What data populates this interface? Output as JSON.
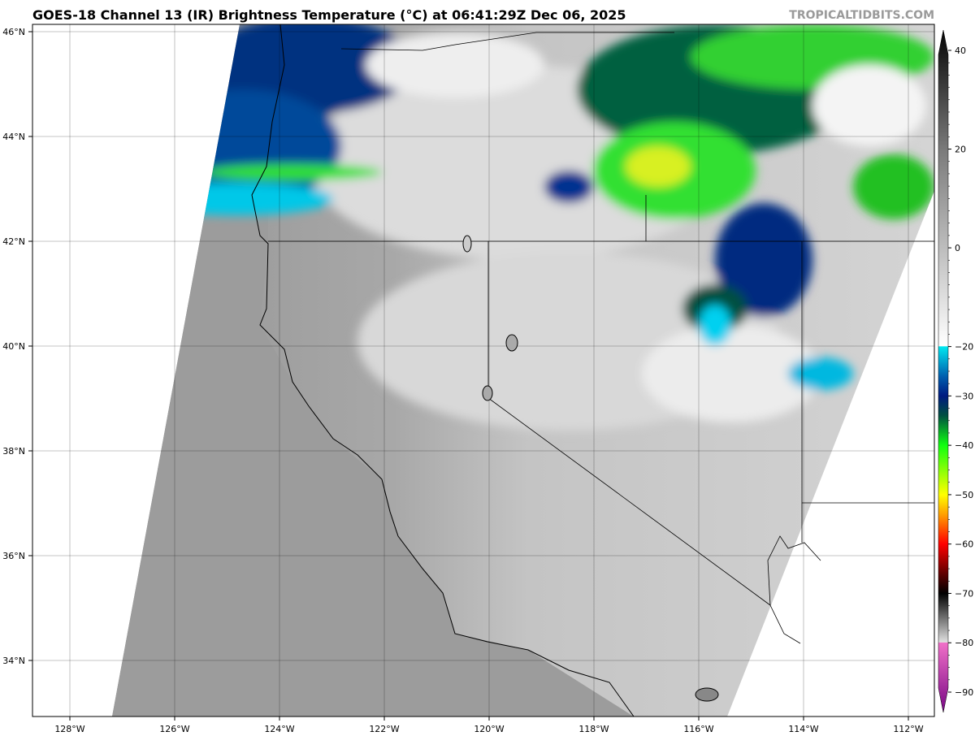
{
  "title": "GOES-18 Channel 13 (IR) Brightness Temperature (°C) at 06:41:29Z Dec 06, 2025",
  "watermark": "TROPICALTIDBITS.COM",
  "map": {
    "lat_ticks": [
      "46°N",
      "44°N",
      "42°N",
      "40°N",
      "38°N",
      "36°N",
      "34°N"
    ],
    "lat_values": [
      46,
      44,
      42,
      40,
      38,
      36,
      34
    ],
    "lon_ticks": [
      "128°W",
      "126°W",
      "124°W",
      "122°W",
      "120°W",
      "118°W",
      "116°W",
      "114°W",
      "112°W"
    ],
    "lon_values": [
      -128,
      -126,
      -124,
      -122,
      -120,
      -118,
      -116,
      -114,
      -112
    ],
    "extent": {
      "lon": [
        -128.7,
        -111.5
      ],
      "lat": [
        32.9,
        46.15
      ]
    }
  },
  "colorbar": {
    "label_values": [
      "40",
      "20",
      "0",
      "−20",
      "−30",
      "−40",
      "−50",
      "−60",
      "−70",
      "−80",
      "−90"
    ],
    "values": [
      40,
      20,
      0,
      -20,
      -30,
      -40,
      -50,
      -60,
      -70,
      -80,
      -90
    ],
    "range": [
      -95,
      45
    ],
    "stops": [
      {
        "v": 45,
        "c": "#000000"
      },
      {
        "v": 20,
        "c": "#7a7a7a"
      },
      {
        "v": -19.9,
        "c": "#ffffff"
      },
      {
        "v": -20,
        "c": "#00e8f0"
      },
      {
        "v": -26,
        "c": "#0060b0"
      },
      {
        "v": -30,
        "c": "#001a80"
      },
      {
        "v": -34,
        "c": "#005040"
      },
      {
        "v": -40,
        "c": "#10ff10"
      },
      {
        "v": -50,
        "c": "#ffff00"
      },
      {
        "v": -54,
        "c": "#ffa000"
      },
      {
        "v": -60,
        "c": "#ff0000"
      },
      {
        "v": -66,
        "c": "#600000"
      },
      {
        "v": -70,
        "c": "#000000"
      },
      {
        "v": -79.9,
        "c": "#e0e0e0"
      },
      {
        "v": -80,
        "c": "#f070c8"
      },
      {
        "v": -95,
        "c": "#700080"
      }
    ]
  }
}
